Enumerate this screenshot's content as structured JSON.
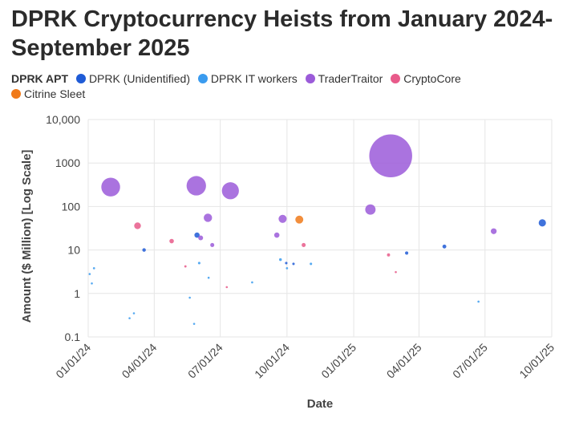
{
  "chart_data": {
    "type": "scatter",
    "title": "DPRK Cryptocurrency Heists from January 2024-September 2025",
    "xlabel": "Date",
    "ylabel": "Amount ($ Million) [Log Scale]",
    "yscale": "log",
    "ylim": [
      0.1,
      10000
    ],
    "xlim": [
      "2024-01-01",
      "2025-10-01"
    ],
    "yticks": [
      "10,000",
      "1000",
      "100",
      "10",
      "1",
      "0.1"
    ],
    "xticks": [
      "01/01/24",
      "04/01/24",
      "07/01/24",
      "10/01/24",
      "01/01/25",
      "04/01/25",
      "07/01/25",
      "10/01/25"
    ],
    "legend": {
      "title": "DPRK APT",
      "position": "top",
      "entries": [
        {
          "name": "DPRK (Unidentified)",
          "color": "#1f5bd6"
        },
        {
          "name": "DPRK IT workers",
          "color": "#3a9bef"
        },
        {
          "name": "TraderTraitor",
          "color": "#9b5bd9"
        },
        {
          "name": "CryptoCore",
          "color": "#e85a8a"
        },
        {
          "name": "Citrine Sleet",
          "color": "#f07a1a"
        }
      ]
    },
    "series": [
      {
        "name": "DPRK (Unidentified)",
        "points": [
          {
            "date": "2024-03-18",
            "value": 10
          },
          {
            "date": "2024-05-30",
            "value": 22
          },
          {
            "date": "2024-09-30",
            "value": 5
          },
          {
            "date": "2024-10-10",
            "value": 4.8
          },
          {
            "date": "2025-03-15",
            "value": 8.5
          },
          {
            "date": "2025-05-06",
            "value": 12
          },
          {
            "date": "2025-09-18",
            "value": 42
          }
        ]
      },
      {
        "name": "DPRK IT workers",
        "points": [
          {
            "date": "2024-01-03",
            "value": 2.8
          },
          {
            "date": "2024-01-06",
            "value": 1.7
          },
          {
            "date": "2024-01-09",
            "value": 3.8
          },
          {
            "date": "2024-02-27",
            "value": 0.27
          },
          {
            "date": "2024-03-04",
            "value": 0.35
          },
          {
            "date": "2024-05-20",
            "value": 0.8
          },
          {
            "date": "2024-05-26",
            "value": 0.2
          },
          {
            "date": "2024-06-02",
            "value": 5
          },
          {
            "date": "2024-06-15",
            "value": 2.3
          },
          {
            "date": "2024-08-14",
            "value": 1.8
          },
          {
            "date": "2024-09-22",
            "value": 6
          },
          {
            "date": "2024-10-01",
            "value": 3.8
          },
          {
            "date": "2024-11-03",
            "value": 4.8
          },
          {
            "date": "2025-06-22",
            "value": 0.65
          }
        ]
      },
      {
        "name": "TraderTraitor",
        "points": [
          {
            "date": "2024-02-01",
            "value": 280
          },
          {
            "date": "2024-05-29",
            "value": 300
          },
          {
            "date": "2024-06-04",
            "value": 19
          },
          {
            "date": "2024-06-14",
            "value": 55
          },
          {
            "date": "2024-06-20",
            "value": 13
          },
          {
            "date": "2024-07-15",
            "value": 230
          },
          {
            "date": "2024-09-17",
            "value": 22
          },
          {
            "date": "2024-09-25",
            "value": 52
          },
          {
            "date": "2025-01-24",
            "value": 85
          },
          {
            "date": "2025-02-21",
            "value": 1460
          },
          {
            "date": "2025-07-13",
            "value": 27
          }
        ]
      },
      {
        "name": "CryptoCore",
        "points": [
          {
            "date": "2024-03-09",
            "value": 36
          },
          {
            "date": "2024-04-25",
            "value": 16
          },
          {
            "date": "2024-05-14",
            "value": 4.2
          },
          {
            "date": "2024-07-10",
            "value": 1.4
          },
          {
            "date": "2024-10-24",
            "value": 13
          },
          {
            "date": "2025-02-18",
            "value": 7.7
          },
          {
            "date": "2025-02-28",
            "value": 3.1
          }
        ]
      },
      {
        "name": "Citrine Sleet",
        "points": [
          {
            "date": "2024-10-18",
            "value": 50
          }
        ]
      }
    ]
  }
}
